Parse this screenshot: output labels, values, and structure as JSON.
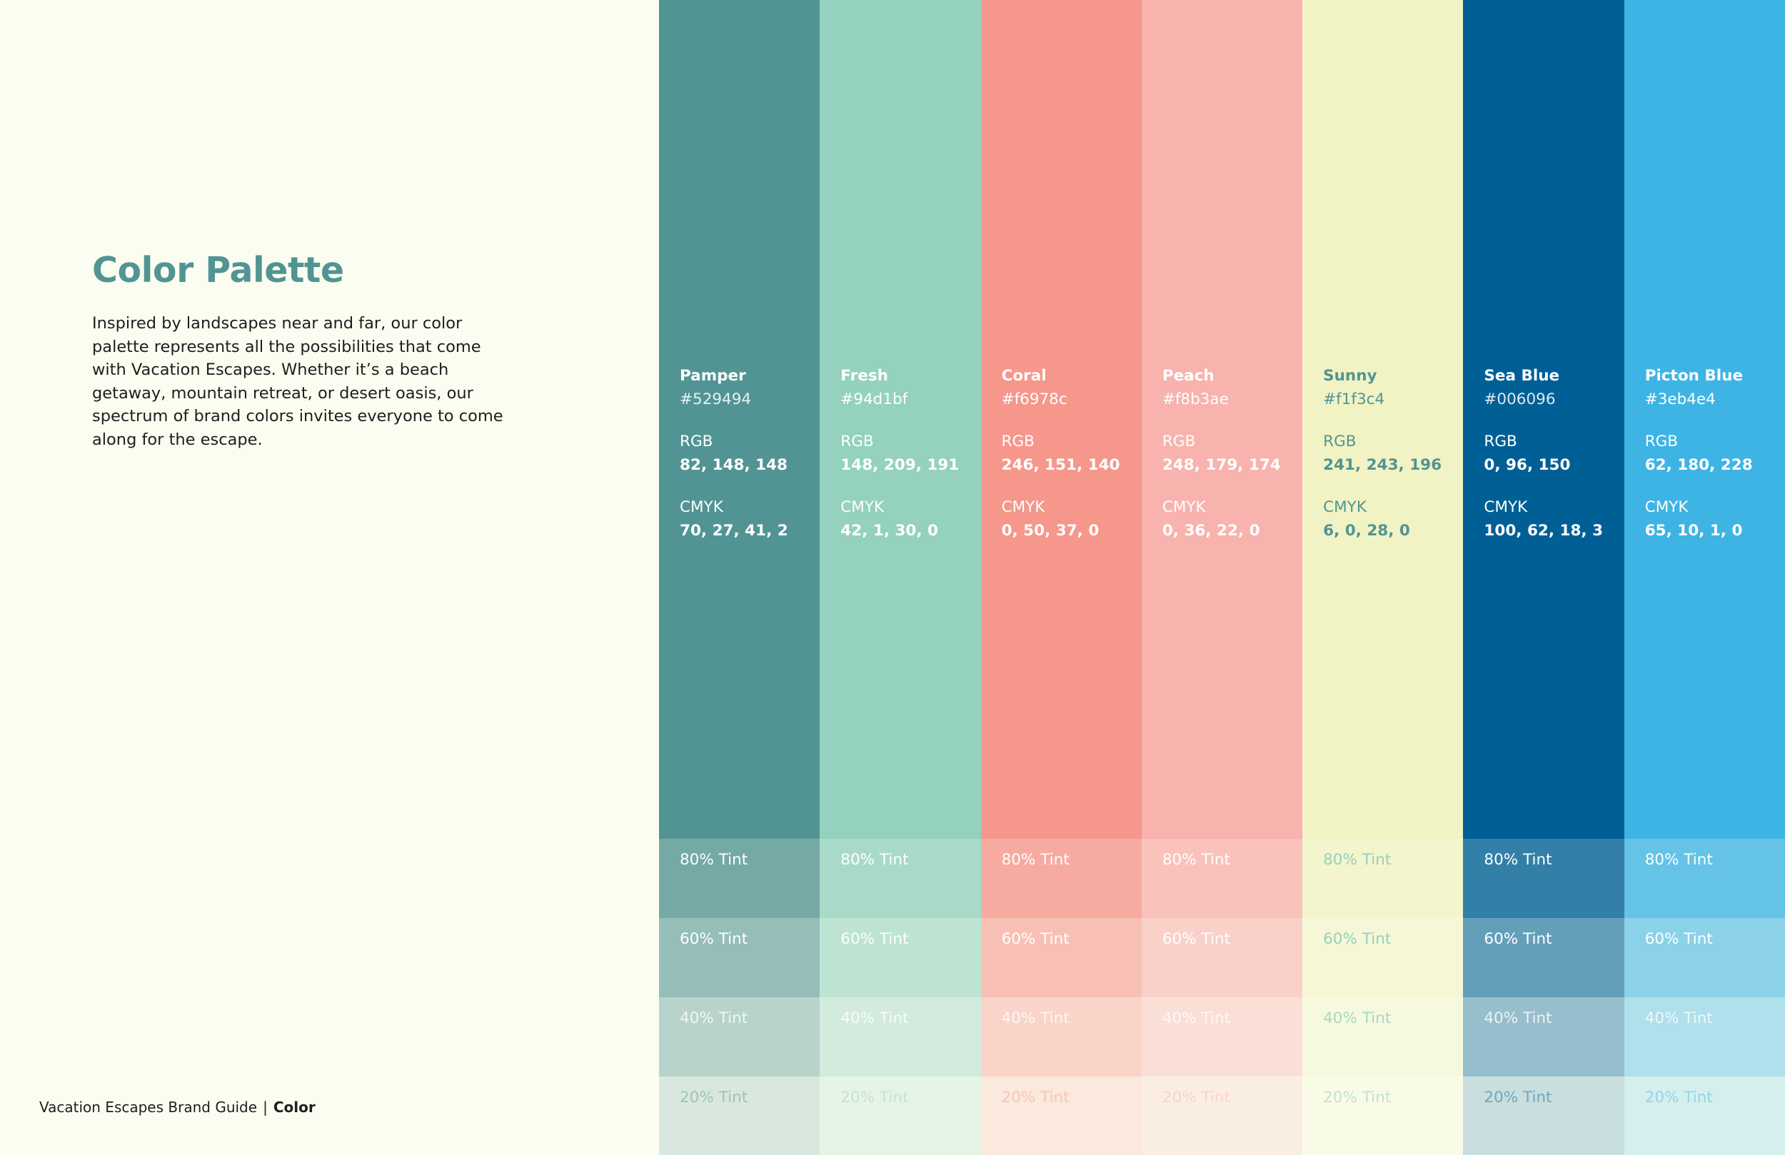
{
  "title": "Color Palette",
  "description": "Inspired by landscapes near and far, our color palette represents all the possibilities that come with Vacation Escapes. Whether it’s a beach getaway, mountain retreat, or desert oasis, our spectrum of brand colors invites everyone to come along for the escape.",
  "footer": {
    "guide": "Vacation Escapes Brand Guide",
    "separator": "|",
    "section": "Color"
  },
  "labels": {
    "rgb": "RGB",
    "cmyk": "CMYK"
  },
  "tint_labels": [
    "80% Tint",
    "60% Tint",
    "40% Tint",
    "20% Tint"
  ],
  "tint_levels": [
    0.8,
    0.6,
    0.4,
    0.2
  ],
  "background": "#fbfdf0",
  "colors": [
    {
      "name": "Pamper",
      "hex": "#529494",
      "rgb": "82, 148, 148",
      "cmyk": "70, 27, 41, 2",
      "text": "#ffffff",
      "hex_text": "#e6f2f2",
      "tint_text": "#ffffff"
    },
    {
      "name": "Fresh",
      "hex": "#94d1bf",
      "rgb": "148, 209, 191",
      "cmyk": "42, 1, 30, 0",
      "text": "#ffffff",
      "hex_text": "#ffffff",
      "tint_text": "#ffffff"
    },
    {
      "name": "Coral",
      "hex": "#f6978c",
      "rgb": "246, 151, 140",
      "cmyk": "0, 50, 37, 0",
      "text": "#ffffff",
      "hex_text": "#ffffff",
      "tint_text": "#ffffff"
    },
    {
      "name": "Peach",
      "hex": "#f8b3ae",
      "rgb": "248, 179, 174",
      "cmyk": "0, 36, 22, 0",
      "text": "#ffffff",
      "hex_text": "#ffffff",
      "tint_text": "#ffffff"
    },
    {
      "name": "Sunny",
      "hex": "#f1f3c4",
      "rgb": "241, 243, 196",
      "cmyk": "6, 0, 28, 0",
      "text": "#529494",
      "hex_text": "#529494",
      "tint_text": "#94d1bf"
    },
    {
      "name": "Sea Blue",
      "hex": "#006096",
      "rgb": "0, 96, 150",
      "cmyk": "100, 62, 18, 3",
      "text": "#ffffff",
      "hex_text": "#dde8f0",
      "tint_text": "#ffffff"
    },
    {
      "name": "Picton Blue",
      "hex": "#3eb4e4",
      "rgb": "62, 180, 228",
      "cmyk": "65, 10, 1, 0",
      "text": "#ffffff",
      "hex_text": "#ffffff",
      "tint_text": "#ffffff"
    }
  ]
}
